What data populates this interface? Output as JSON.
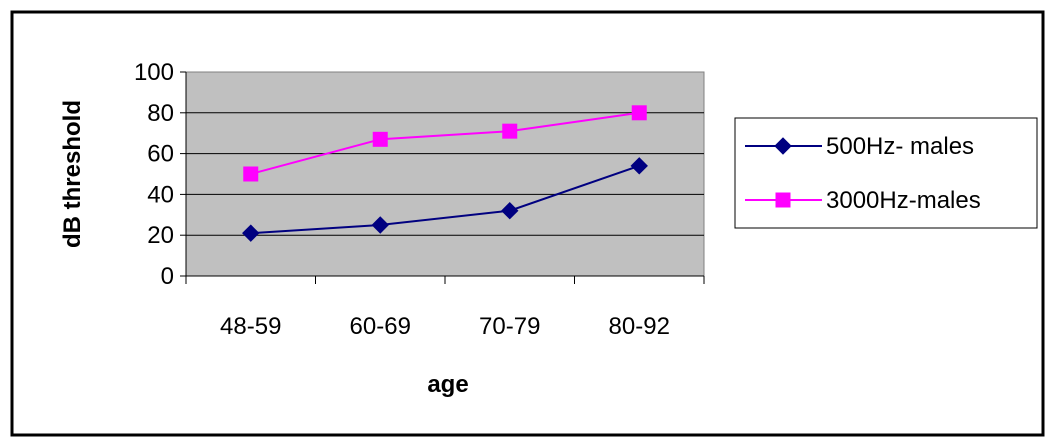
{
  "chart_data": {
    "type": "line",
    "categories": [
      "48-59",
      "60-69",
      "70-79",
      "80-92"
    ],
    "series": [
      {
        "name": "500Hz- males",
        "values": [
          21,
          25,
          32,
          54
        ],
        "color": "#000080",
        "marker": "diamond"
      },
      {
        "name": "3000Hz-males",
        "values": [
          50,
          67,
          71,
          80
        ],
        "color": "#ff00ff",
        "marker": "square"
      }
    ],
    "xlabel": "age",
    "ylabel": "dB threshold",
    "ylim": [
      0,
      100
    ],
    "yticks": [
      "0",
      "20",
      "40",
      "60",
      "80",
      "100"
    ],
    "grid": true,
    "plot_background": "#c0c0c0",
    "legend_position": "right"
  }
}
